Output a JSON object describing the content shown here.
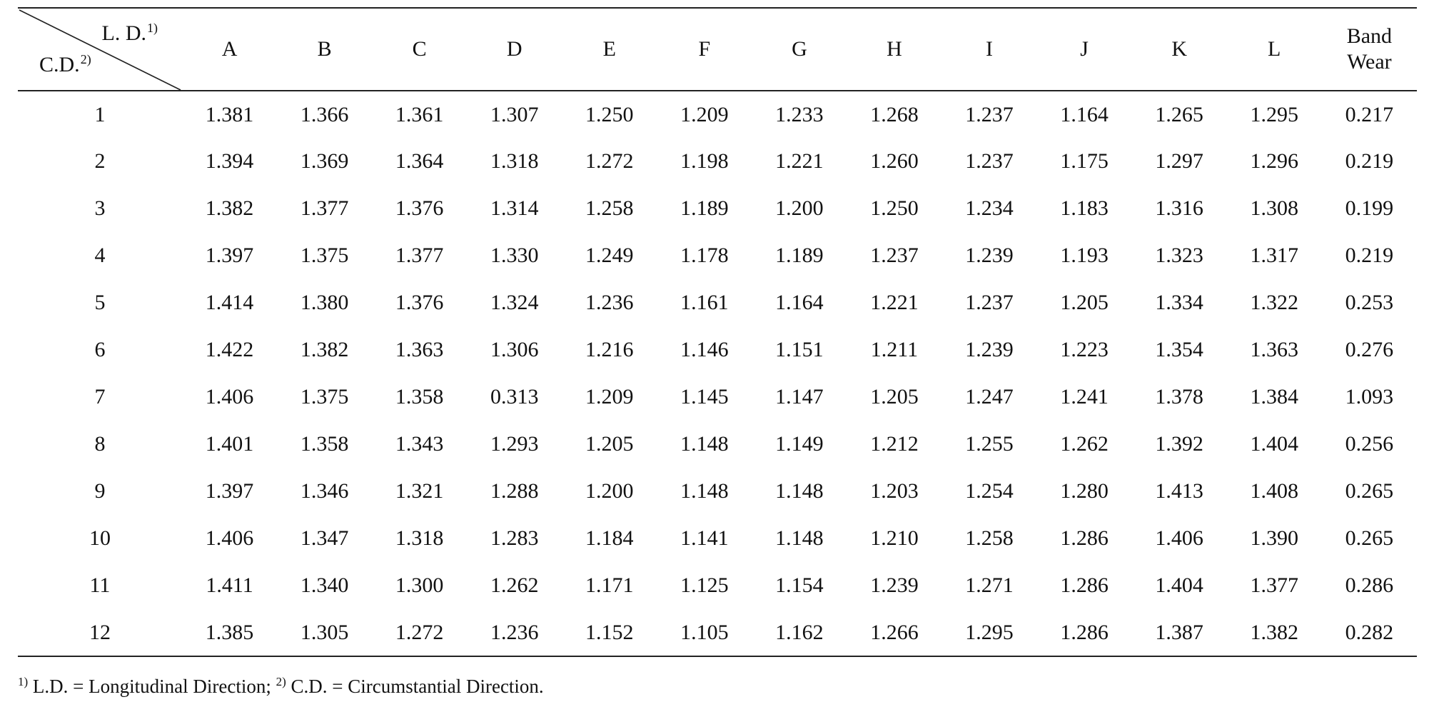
{
  "table": {
    "corner": {
      "top_label": "L. D.",
      "top_mark": "1)",
      "bottom_label": "C.D.",
      "bottom_mark": "2)"
    },
    "columns": [
      "A",
      "B",
      "C",
      "D",
      "E",
      "F",
      "G",
      "H",
      "I",
      "J",
      "K",
      "L"
    ],
    "last_column": [
      "Band",
      "Wear"
    ],
    "rows": [
      {
        "id": "1",
        "values": [
          "1.381",
          "1.366",
          "1.361",
          "1.307",
          "1.250",
          "1.209",
          "1.233",
          "1.268",
          "1.237",
          "1.164",
          "1.265",
          "1.295",
          "0.217"
        ]
      },
      {
        "id": "2",
        "values": [
          "1.394",
          "1.369",
          "1.364",
          "1.318",
          "1.272",
          "1.198",
          "1.221",
          "1.260",
          "1.237",
          "1.175",
          "1.297",
          "1.296",
          "0.219"
        ]
      },
      {
        "id": "3",
        "values": [
          "1.382",
          "1.377",
          "1.376",
          "1.314",
          "1.258",
          "1.189",
          "1.200",
          "1.250",
          "1.234",
          "1.183",
          "1.316",
          "1.308",
          "0.199"
        ]
      },
      {
        "id": "4",
        "values": [
          "1.397",
          "1.375",
          "1.377",
          "1.330",
          "1.249",
          "1.178",
          "1.189",
          "1.237",
          "1.239",
          "1.193",
          "1.323",
          "1.317",
          "0.219"
        ]
      },
      {
        "id": "5",
        "values": [
          "1.414",
          "1.380",
          "1.376",
          "1.324",
          "1.236",
          "1.161",
          "1.164",
          "1.221",
          "1.237",
          "1.205",
          "1.334",
          "1.322",
          "0.253"
        ]
      },
      {
        "id": "6",
        "values": [
          "1.422",
          "1.382",
          "1.363",
          "1.306",
          "1.216",
          "1.146",
          "1.151",
          "1.211",
          "1.239",
          "1.223",
          "1.354",
          "1.363",
          "0.276"
        ]
      },
      {
        "id": "7",
        "values": [
          "1.406",
          "1.375",
          "1.358",
          "0.313",
          "1.209",
          "1.145",
          "1.147",
          "1.205",
          "1.247",
          "1.241",
          "1.378",
          "1.384",
          "1.093"
        ]
      },
      {
        "id": "8",
        "values": [
          "1.401",
          "1.358",
          "1.343",
          "1.293",
          "1.205",
          "1.148",
          "1.149",
          "1.212",
          "1.255",
          "1.262",
          "1.392",
          "1.404",
          "0.256"
        ]
      },
      {
        "id": "9",
        "values": [
          "1.397",
          "1.346",
          "1.321",
          "1.288",
          "1.200",
          "1.148",
          "1.148",
          "1.203",
          "1.254",
          "1.280",
          "1.413",
          "1.408",
          "0.265"
        ]
      },
      {
        "id": "10",
        "values": [
          "1.406",
          "1.347",
          "1.318",
          "1.283",
          "1.184",
          "1.141",
          "1.148",
          "1.210",
          "1.258",
          "1.286",
          "1.406",
          "1.390",
          "0.265"
        ]
      },
      {
        "id": "11",
        "values": [
          "1.411",
          "1.340",
          "1.300",
          "1.262",
          "1.171",
          "1.125",
          "1.154",
          "1.239",
          "1.271",
          "1.286",
          "1.404",
          "1.377",
          "0.286"
        ]
      },
      {
        "id": "12",
        "values": [
          "1.385",
          "1.305",
          "1.272",
          "1.236",
          "1.152",
          "1.105",
          "1.162",
          "1.266",
          "1.295",
          "1.286",
          "1.387",
          "1.382",
          "0.282"
        ]
      }
    ]
  },
  "footnote": {
    "mark1": "1)",
    "text1": " L.D. = Longitudinal Direction; ",
    "mark2": "2)",
    "text2": " C.D. = Circumstantial Direction."
  }
}
